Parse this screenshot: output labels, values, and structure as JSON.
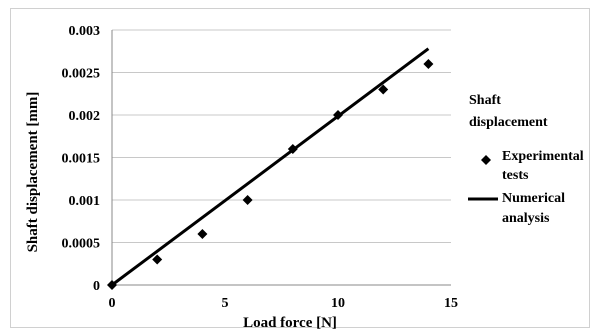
{
  "chart_data": {
    "type": "scatter",
    "title": "",
    "xlabel": "Load force [N]",
    "ylabel": "Shaft  displacement [mm]",
    "xlim": [
      0,
      15
    ],
    "ylim": [
      0,
      0.003
    ],
    "x_ticks": [
      "0",
      "5",
      "10",
      "15"
    ],
    "y_ticks": [
      "0",
      "0.0005",
      "0.001",
      "0.0015",
      "0.002",
      "0.0025",
      "0.003"
    ],
    "grid": "horizontal",
    "legend_position": "right",
    "legend_title": [
      "Shaft",
      "displacement"
    ],
    "series": [
      {
        "name": [
          "Experimental",
          "tests"
        ],
        "kind": "scatter",
        "marker": "diamond",
        "color": "#000000",
        "x": [
          0,
          2,
          4,
          6,
          8,
          10,
          12,
          14
        ],
        "y": [
          0,
          0.0003,
          0.0006,
          0.001,
          0.0016,
          0.002,
          0.0023,
          0.0026
        ]
      },
      {
        "name": [
          "Numerical",
          "analysis"
        ],
        "kind": "line",
        "color": "#000000",
        "x": [
          0,
          14
        ],
        "y": [
          0,
          0.00278
        ]
      }
    ]
  }
}
